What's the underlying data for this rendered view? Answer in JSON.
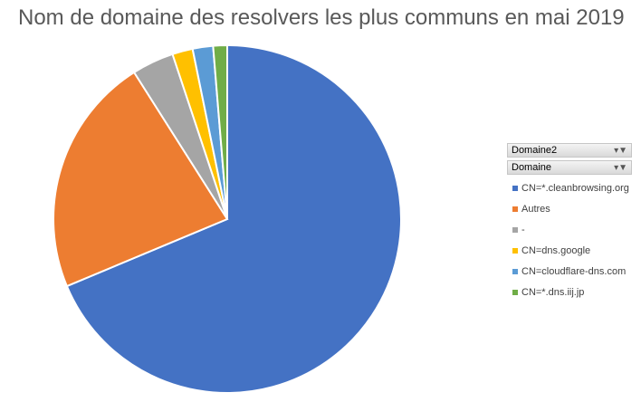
{
  "chart_data": {
    "type": "pie",
    "title": "Nom de domaine des resolvers les plus communs en mai 2019",
    "slices": [
      {
        "label": "CN=*.cleanbrowsing.org",
        "value": 68.7,
        "color": "#4472c4"
      },
      {
        "label": "Autres",
        "value": 22.3,
        "color": "#ed7d31"
      },
      {
        "label": "-",
        "value": 3.9,
        "color": "#a5a5a5"
      },
      {
        "label": "CN=dns.google",
        "value": 1.9,
        "color": "#ffc000"
      },
      {
        "label": "CN=cloudflare-dns.com",
        "value": 1.9,
        "color": "#5b9bd5"
      },
      {
        "label": "CN=*.dns.iij.jp",
        "value": 1.3,
        "color": "#70ad47"
      }
    ],
    "legend_position": "right"
  },
  "filters": [
    {
      "label": "Domaine2",
      "icon": "filter-dropdown-icon"
    },
    {
      "label": "Domaine",
      "icon": "filter-dropdown-icon"
    }
  ]
}
